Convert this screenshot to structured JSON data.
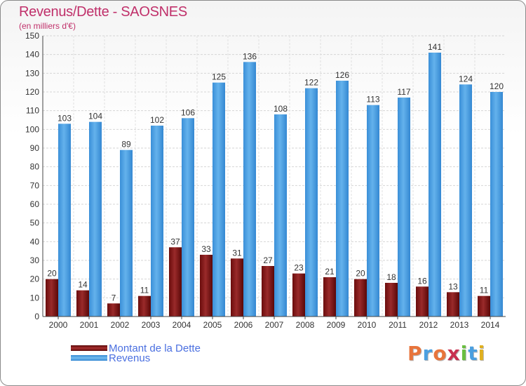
{
  "title": "Revenus/Dette - SAOSNES",
  "subtitle": "(en milliers d'€)",
  "brand": "Proxiti",
  "colors": {
    "title": "#c0306a",
    "debt": "#8a1a1a",
    "revenue": "#4a9fe0",
    "legend_text": "#4a6fe0"
  },
  "chart_data": {
    "type": "bar",
    "categories": [
      "2000",
      "2001",
      "2002",
      "2003",
      "2004",
      "2005",
      "2006",
      "2007",
      "2008",
      "2009",
      "2010",
      "2011",
      "2012",
      "2013",
      "2014"
    ],
    "series": [
      {
        "name": "Montant de la Dette",
        "values": [
          20,
          14,
          7,
          11,
          37,
          33,
          31,
          27,
          23,
          21,
          20,
          18,
          16,
          13,
          11
        ]
      },
      {
        "name": "Revenus",
        "values": [
          103,
          104,
          89,
          102,
          106,
          125,
          136,
          108,
          122,
          126,
          113,
          117,
          141,
          124,
          120
        ]
      }
    ],
    "ylim": [
      0,
      150
    ],
    "ytick_step": 10,
    "grid": true,
    "legend_position": "bottom-left"
  }
}
